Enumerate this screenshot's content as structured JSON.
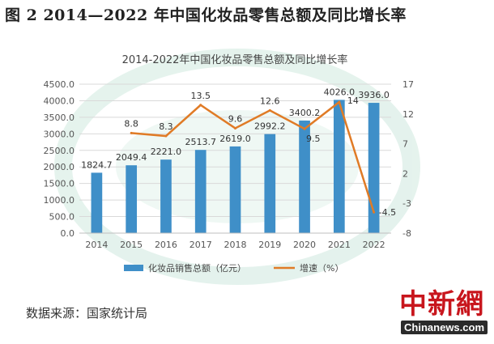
{
  "figure_title": "图 2  2014—2022 年中国化妆品零售总额及同比增长率",
  "source_note": "数据来源：国家统计局",
  "logo": {
    "cn": "中新網",
    "en": "Chinanews.com"
  },
  "colors": {
    "bar": "#3f8fc8",
    "line": "#e07b26",
    "background_watermark": "#dcefe8"
  },
  "chart_data": {
    "type": "bar",
    "title": "2014-2022年中国化妆品零售总额及同比增长率",
    "categories": [
      "2014",
      "2015",
      "2016",
      "2017",
      "2018",
      "2019",
      "2020",
      "2021",
      "2022"
    ],
    "y_left": {
      "ylim": [
        0,
        4500
      ],
      "ticks": [
        "4500.0",
        "4000.0",
        "3500.0",
        "3000.0",
        "2500.0",
        "2000.0",
        "1500.0",
        "1000.0",
        "500.0",
        "0.0"
      ]
    },
    "y_right": {
      "ylim": [
        -8,
        17
      ],
      "ticks": [
        "17",
        "12",
        "7",
        "2",
        "-3",
        "-8"
      ]
    },
    "series": [
      {
        "name": "化妆品销售总额（亿元）",
        "type": "bar",
        "axis": "left",
        "values": [
          1824.7,
          2049.4,
          2221.0,
          2513.7,
          2619.0,
          2992.2,
          3400.2,
          4026.0,
          3936.0
        ],
        "labels": [
          "1824.7",
          "2049.4",
          "2221.0",
          "2513.7",
          "2619.0",
          "2992.2",
          "3400.2",
          "4026.0",
          "3936.0"
        ]
      },
      {
        "name": "增速（%）",
        "type": "line",
        "axis": "right",
        "values": [
          null,
          8.8,
          8.3,
          13.5,
          9.6,
          12.6,
          9.5,
          14,
          -4.5
        ],
        "labels": [
          "",
          "8.8",
          "8.3",
          "13.5",
          "9.6",
          "12.6",
          "9.5",
          "14",
          "-4.5"
        ]
      }
    ],
    "legend_position": "bottom",
    "grid": true
  }
}
